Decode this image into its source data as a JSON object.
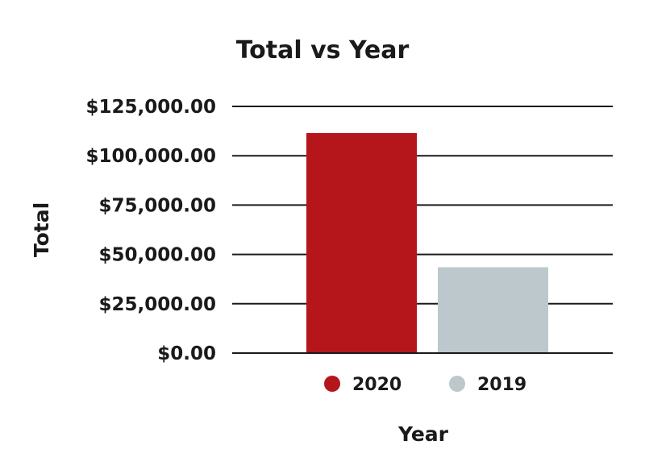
{
  "chart_data": {
    "type": "bar",
    "title": "Total vs Year",
    "xlabel": "Year",
    "ylabel": "Total",
    "categories": [
      "2020",
      "2019"
    ],
    "values": [
      111500,
      43500
    ],
    "colors": [
      "#b5161c",
      "#bcc8cc"
    ],
    "ylim": [
      0,
      125000
    ],
    "yticks": [
      0,
      25000,
      50000,
      75000,
      100000,
      125000
    ],
    "ytick_labels": [
      "$0.00",
      "$25,000.00",
      "$50,000.00",
      "$75,000.00",
      "$100,000.00",
      "$125,000.00"
    ],
    "grid": true,
    "legend": {
      "placement": "bottom",
      "entries": [
        "2020",
        "2019"
      ]
    }
  }
}
